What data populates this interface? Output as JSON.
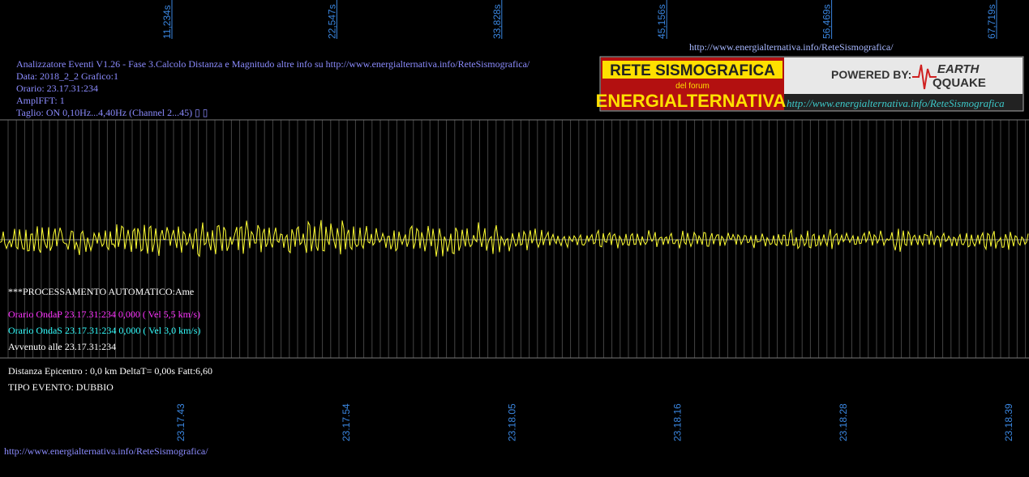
{
  "top_url": "http://www.energialternativa.info/ReteSismografica/",
  "header": {
    "lines": [
      "Analizzatore Eventi V1.26 - Fase 3.Calcolo Distanza e Magnitudo altre info su http://www.energialternativa.info/ReteSismografica/",
      "Data: 2018_2_2 Grafico:1",
      "Orario: 23.17.31:234",
      "AmplFFT: 1",
      "Taglio: ON 0,10Hz...4,40Hz       (Channel 2...45) ▯ ▯"
    ]
  },
  "logo": {
    "title": "RETE SISMOGRAFICA",
    "subtitle": "del forum",
    "brand": "ENERGIALTERNATIVA",
    "powered": "POWERED BY:",
    "earth": "EARTH",
    "quake": "QQUAKE",
    "url": "http://www.energialternativa.info/ReteSismografica"
  },
  "top_time_labels": [
    "11,234s",
    "22,547s",
    "33,828s",
    "45,156s",
    "56,469s",
    "67,719s"
  ],
  "bottom_time_labels": [
    "23.17.43",
    "23.17.54",
    "23.18.05",
    "23.18.16",
    "23.18.28",
    "23.18.39"
  ],
  "processing": {
    "title": "***PROCESSAMENTO AUTOMATICO:Ame",
    "onda_p": "Orario OndaP 23.17.31:234  0,000 ( Vel 5,5 km/s)",
    "onda_s": "Orario OndaS 23.17.31:234  0,000 ( Vel 3,0 km/s)",
    "avvenuto": "Avvenuto alle 23.17.31:234"
  },
  "result": {
    "distance": "Distanza Epicentro : 0,0 km DeltaT= 0,00s  Fatt:6,60",
    "event_type": "TIPO EVENTO: DUBBIO"
  },
  "footer_url": "http://www.energialternativa.info/ReteSismografica/"
}
